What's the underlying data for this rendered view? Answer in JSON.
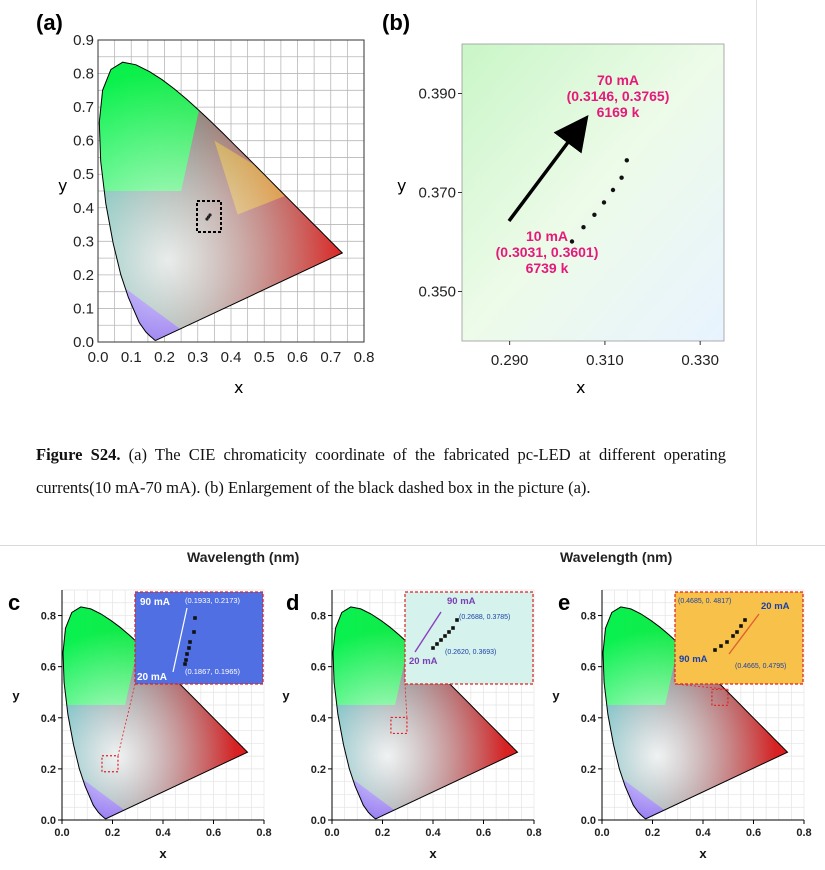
{
  "panels_top": {
    "a": {
      "label": "(a)",
      "xlabel": "x",
      "ylabel": "y",
      "x_ticks": [
        "0.0",
        "0.1",
        "0.2",
        "0.3",
        "0.4",
        "0.5",
        "0.6",
        "0.7",
        "0.8"
      ],
      "y_ticks": [
        "0.0",
        "0.1",
        "0.2",
        "0.3",
        "0.4",
        "0.5",
        "0.6",
        "0.7",
        "0.8",
        "0.9"
      ]
    },
    "b": {
      "label": "(b)",
      "xlabel": "x",
      "ylabel": "y",
      "x_ticks": [
        "0.290",
        "0.310",
        "0.330"
      ],
      "y_ticks": [
        "0.350",
        "0.370",
        "0.390"
      ],
      "ann_top": [
        "70 mA",
        "(0.3146, 0.3765)",
        "6169 k"
      ],
      "ann_bottom": [
        "10 mA",
        "(0.3031, 0.3601)",
        "6739 k"
      ],
      "ann_color": "#e6197a"
    }
  },
  "caption": {
    "bold": "Figure S24.",
    "text": " (a) The CIE chromaticity coordinate of the fabricated pc-LED at different operating currents(10 mA-70 mA). (b) Enlargement of the black dashed box in the picture (a)."
  },
  "panels_bottom": {
    "wavelength_label": "Wavelength (nm)",
    "c": {
      "label": "c",
      "xlabel": "x",
      "ylabel": "y",
      "x_ticks": [
        "0.0",
        "0.2",
        "0.4",
        "0.6",
        "0.8"
      ],
      "y_ticks": [
        "0.0",
        "0.2",
        "0.4",
        "0.6",
        "0.8"
      ],
      "inset_color": "#4f6fe3",
      "inset_top": "90 mA",
      "inset_top_coord": "(0.1933, 0.2173)",
      "inset_bottom": "20 mA",
      "inset_bottom_coord": "(0.1867, 0.1965)"
    },
    "d": {
      "label": "d",
      "xlabel": "x",
      "ylabel": "y",
      "x_ticks": [
        "0.0",
        "0.2",
        "0.4",
        "0.6",
        "0.8"
      ],
      "y_ticks": [
        "0.0",
        "0.2",
        "0.4",
        "0.6",
        "0.8"
      ],
      "inset_color": "#d5f3ec",
      "inset_top": "90 mA",
      "inset_top_coord": "(0.2688, 0.3785)",
      "inset_bottom": "20 mA",
      "inset_bottom_coord": "(0.2620, 0.3693)"
    },
    "e": {
      "label": "e",
      "xlabel": "x",
      "ylabel": "y",
      "x_ticks": [
        "0.0",
        "0.2",
        "0.4",
        "0.6",
        "0.8"
      ],
      "y_ticks": [
        "0.0",
        "0.2",
        "0.4",
        "0.6",
        "0.8"
      ],
      "inset_color": "#f8c24a",
      "inset_top": "20 mA",
      "inset_top_coord": "(0.4685, 0. 4817)",
      "inset_bottom": "90 mA",
      "inset_bottom_coord": "(0.4665, 0.4795)"
    }
  },
  "chart_data": [
    {
      "type": "scatter",
      "title": "(a)",
      "xlabel": "x",
      "ylabel": "y",
      "xlim": [
        0.0,
        0.8
      ],
      "ylim": [
        0.0,
        0.9
      ],
      "grid": true
    },
    {
      "type": "scatter",
      "title": "(b)",
      "xlabel": "x",
      "ylabel": "y",
      "xlim": [
        0.28,
        0.335
      ],
      "ylim": [
        0.34,
        0.4
      ],
      "series": [
        {
          "x": [
            0.3031,
            0.3055,
            0.3078,
            0.3098,
            0.3117,
            0.3135,
            0.3146
          ],
          "y": [
            0.3601,
            0.363,
            0.3655,
            0.368,
            0.3705,
            0.373,
            0.3765
          ]
        }
      ]
    }
  ]
}
